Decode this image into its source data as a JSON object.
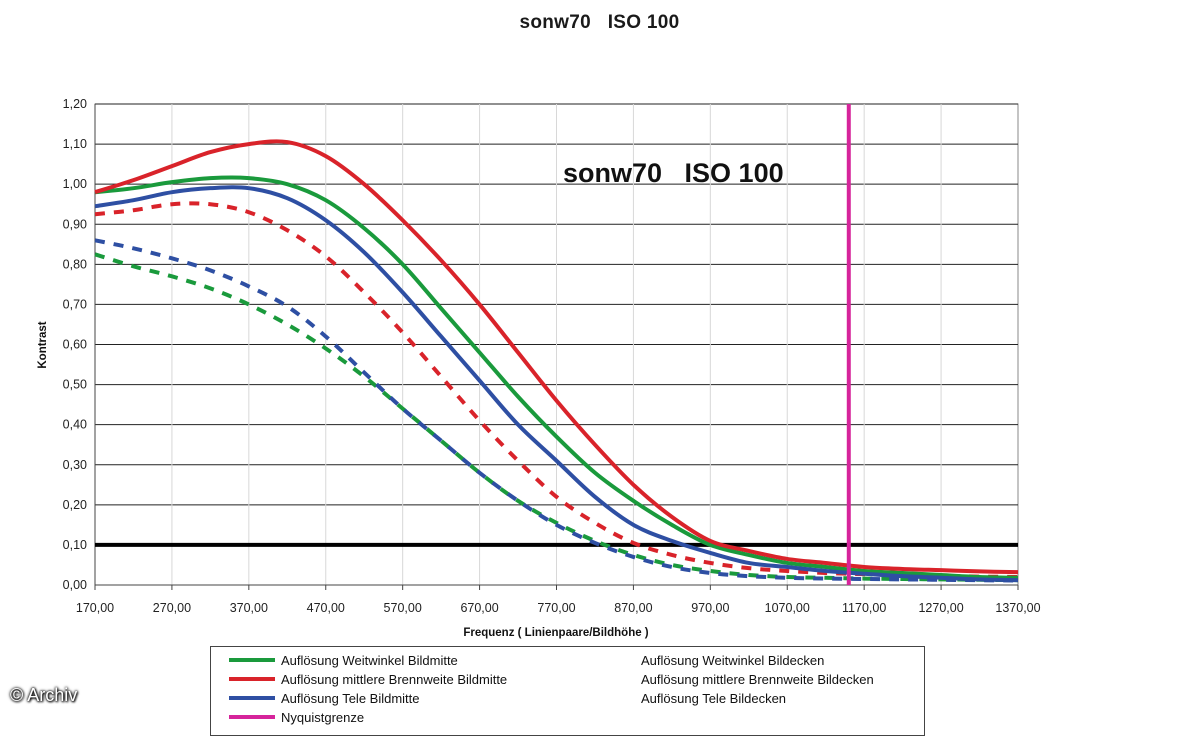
{
  "title": "sonw70   ISO 100",
  "copyright": "© Archiv",
  "chart_data": {
    "type": "line",
    "title": "sonw70   ISO 100",
    "annotation": "sonw70   ISO 100",
    "xlabel": "Frequenz ( Linienpaare/Bildhöhe )",
    "ylabel": "Kontrast",
    "xlim": [
      170,
      1370
    ],
    "ylim": [
      0,
      1.2
    ],
    "xticks": [
      "170,00",
      "270,00",
      "370,00",
      "470,00",
      "570,00",
      "670,00",
      "770,00",
      "870,00",
      "970,00",
      "1070,00",
      "1170,00",
      "1270,00",
      "1370,00"
    ],
    "yticks": [
      "0,00",
      "0,10",
      "0,20",
      "0,30",
      "0,40",
      "0,50",
      "0,60",
      "0,70",
      "0,80",
      "0,90",
      "1,00",
      "1,10",
      "1,20"
    ],
    "grid": "horizontal",
    "threshold_line": 0.1,
    "nyquist_x": 1150,
    "series": [
      {
        "name": "Auflösung Weitwinkel Bildmitte",
        "color": "#1a9a3c",
        "style": "solid",
        "x": [
          170,
          220,
          270,
          320,
          370,
          420,
          470,
          520,
          570,
          620,
          670,
          720,
          770,
          820,
          870,
          920,
          970,
          1020,
          1070,
          1120,
          1170,
          1220,
          1270,
          1320,
          1370
        ],
        "y": [
          0.98,
          0.99,
          1.005,
          1.015,
          1.015,
          1.0,
          0.96,
          0.89,
          0.8,
          0.69,
          0.58,
          0.47,
          0.37,
          0.28,
          0.21,
          0.15,
          0.1,
          0.075,
          0.055,
          0.045,
          0.035,
          0.03,
          0.025,
          0.02,
          0.018
        ]
      },
      {
        "name": "Auflösung mittlere Brennweite Bildmitte",
        "color": "#d9232a",
        "style": "solid",
        "x": [
          170,
          220,
          270,
          320,
          370,
          420,
          470,
          520,
          570,
          620,
          670,
          720,
          770,
          820,
          870,
          920,
          970,
          1020,
          1070,
          1120,
          1170,
          1220,
          1270,
          1320,
          1370
        ],
        "y": [
          0.98,
          1.01,
          1.045,
          1.08,
          1.1,
          1.105,
          1.07,
          1.0,
          0.91,
          0.81,
          0.7,
          0.58,
          0.46,
          0.35,
          0.25,
          0.17,
          0.11,
          0.085,
          0.065,
          0.055,
          0.045,
          0.04,
          0.037,
          0.034,
          0.032
        ]
      },
      {
        "name": "Auflösung Tele Bildmitte",
        "color": "#2e4fa3",
        "style": "solid",
        "x": [
          170,
          220,
          270,
          320,
          370,
          420,
          470,
          520,
          570,
          620,
          670,
          720,
          770,
          820,
          870,
          920,
          970,
          1020,
          1070,
          1120,
          1170,
          1220,
          1270,
          1320,
          1370
        ],
        "y": [
          0.945,
          0.96,
          0.98,
          0.99,
          0.99,
          0.965,
          0.91,
          0.83,
          0.73,
          0.62,
          0.51,
          0.4,
          0.31,
          0.22,
          0.15,
          0.11,
          0.08,
          0.055,
          0.045,
          0.035,
          0.028,
          0.022,
          0.018,
          0.014,
          0.012
        ]
      },
      {
        "name": "Nyquistgrenze",
        "color": "#d6249b",
        "style": "vertical",
        "x": [
          1150,
          1150
        ],
        "y": [
          0,
          1.2
        ]
      },
      {
        "name": "Auflösung Weitwinkel Bildecken",
        "color": "#1a9a3c",
        "style": "dashed",
        "x": [
          170,
          220,
          270,
          320,
          370,
          420,
          470,
          520,
          570,
          620,
          670,
          720,
          770,
          820,
          870,
          920,
          970,
          1020,
          1070,
          1120,
          1170,
          1220,
          1270,
          1320,
          1370
        ],
        "y": [
          0.825,
          0.795,
          0.77,
          0.74,
          0.7,
          0.65,
          0.59,
          0.52,
          0.44,
          0.36,
          0.28,
          0.21,
          0.155,
          0.11,
          0.075,
          0.05,
          0.035,
          0.025,
          0.02,
          0.018,
          0.016,
          0.015,
          0.014,
          0.013,
          0.012
        ]
      },
      {
        "name": "Auflösung mittlere Brennweite Bildecken",
        "color": "#d9232a",
        "style": "dashed",
        "x": [
          170,
          220,
          270,
          320,
          370,
          420,
          470,
          520,
          570,
          620,
          670,
          720,
          770,
          820,
          870,
          920,
          970,
          1020,
          1070,
          1120,
          1170,
          1220,
          1270,
          1320,
          1370
        ],
        "y": [
          0.925,
          0.935,
          0.95,
          0.95,
          0.93,
          0.885,
          0.82,
          0.73,
          0.63,
          0.52,
          0.41,
          0.31,
          0.22,
          0.155,
          0.105,
          0.075,
          0.055,
          0.042,
          0.035,
          0.03,
          0.027,
          0.025,
          0.023,
          0.021,
          0.02
        ]
      },
      {
        "name": "Auflösung Tele Bildecken",
        "color": "#2e4fa3",
        "style": "dashed",
        "x": [
          170,
          220,
          270,
          320,
          370,
          420,
          470,
          520,
          570,
          620,
          670,
          720,
          770,
          820,
          870,
          920,
          970,
          1020,
          1070,
          1120,
          1170,
          1220,
          1270,
          1320,
          1370
        ],
        "y": [
          0.86,
          0.84,
          0.815,
          0.785,
          0.745,
          0.695,
          0.62,
          0.53,
          0.44,
          0.36,
          0.28,
          0.21,
          0.15,
          0.105,
          0.07,
          0.045,
          0.03,
          0.022,
          0.018,
          0.016,
          0.015,
          0.014,
          0.013,
          0.012,
          0.011
        ]
      }
    ]
  },
  "legend": {
    "items": [
      {
        "label": "Auflösung Weitwinkel Bildmitte",
        "color": "#1a9a3c",
        "style": "solid"
      },
      {
        "label": "Auflösung mittlere Brennweite Bildmitte",
        "color": "#d9232a",
        "style": "solid"
      },
      {
        "label": "Auflösung Tele Bildmitte",
        "color": "#2e4fa3",
        "style": "solid"
      },
      {
        "label": "Nyquistgrenze",
        "color": "#d6249b",
        "style": "solid"
      },
      {
        "label": "Auflösung Weitwinkel Bildecken",
        "color": "#1a9a3c",
        "style": "dashed"
      },
      {
        "label": "Auflösung mittlere Brennweite Bildecken",
        "color": "#d9232a",
        "style": "dashed"
      },
      {
        "label": "Auflösung Tele Bildecken",
        "color": "#2e4fa3",
        "style": "dashed"
      }
    ]
  }
}
